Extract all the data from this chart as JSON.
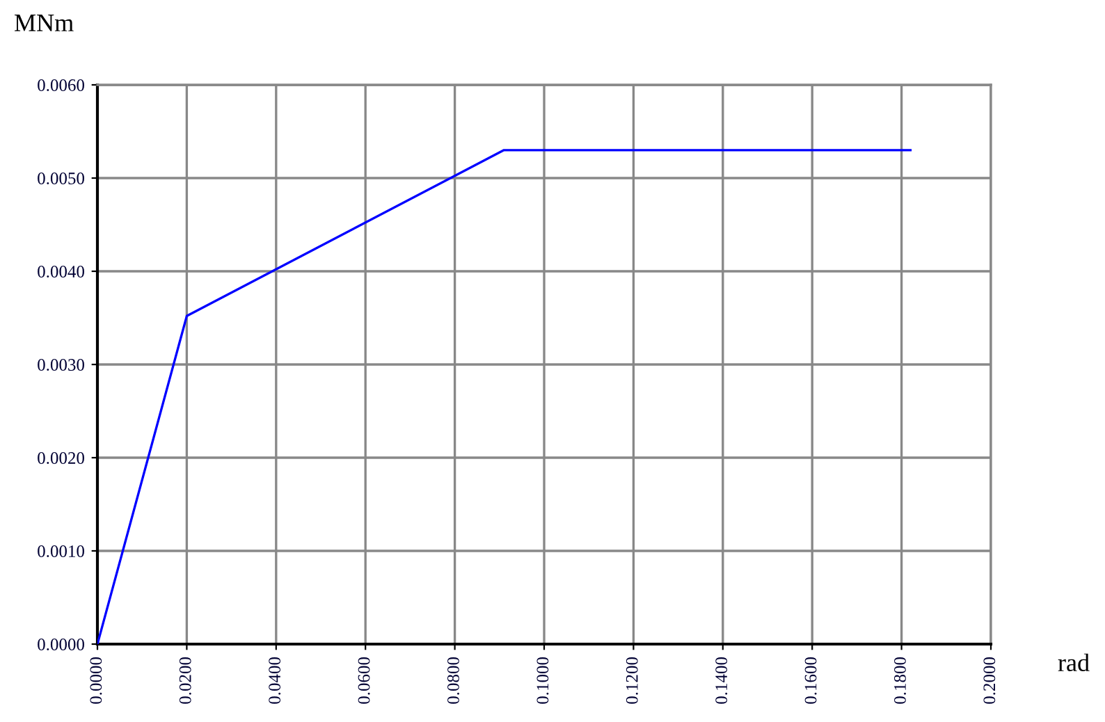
{
  "chart_data": {
    "type": "line",
    "ylabel": "MNm",
    "xlabel": "rad",
    "x": [
      0.0,
      0.02,
      0.091,
      0.182
    ],
    "series": [
      {
        "color": "#0000ff",
        "values": [
          0.0,
          0.00352,
          0.0053,
          0.0053
        ]
      }
    ],
    "xlim": [
      0,
      0.2
    ],
    "ylim": [
      0,
      0.006
    ],
    "xticks": [
      {
        "value": 0,
        "label": "0.0000"
      },
      {
        "value": 0.02,
        "label": "0.0200"
      },
      {
        "value": 0.04,
        "label": "0.0400"
      },
      {
        "value": 0.06,
        "label": "0.0600"
      },
      {
        "value": 0.08,
        "label": "0.0800"
      },
      {
        "value": 0.1,
        "label": "0.1000"
      },
      {
        "value": 0.12,
        "label": "0.1200"
      },
      {
        "value": 0.14,
        "label": "0.1400"
      },
      {
        "value": 0.16,
        "label": "0.1600"
      },
      {
        "value": 0.18,
        "label": "0.1800"
      },
      {
        "value": 0.2,
        "label": "0.2000"
      }
    ],
    "yticks": [
      {
        "value": 0,
        "label": "0.0000"
      },
      {
        "value": 0.001,
        "label": "0.0010"
      },
      {
        "value": 0.002,
        "label": "0.0020"
      },
      {
        "value": 0.003,
        "label": "0.0030"
      },
      {
        "value": 0.004,
        "label": "0.0040"
      },
      {
        "value": 0.005,
        "label": "0.0050"
      },
      {
        "value": 0.006,
        "label": "0.0060"
      }
    ],
    "grid": true,
    "legend": false,
    "marker": "none",
    "line_style": "solid"
  }
}
